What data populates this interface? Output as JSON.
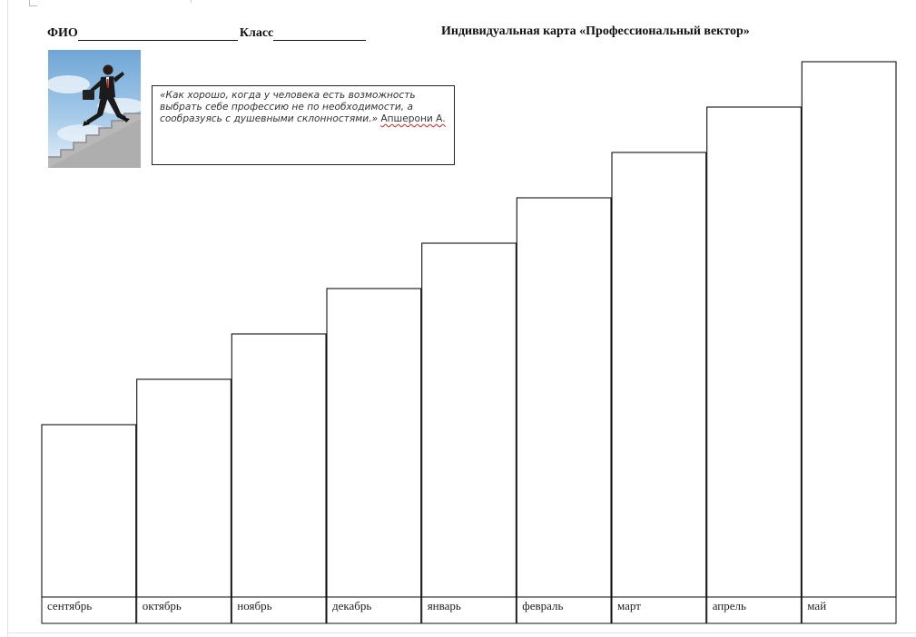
{
  "header": {
    "fio_label": "ФИО",
    "class_label": "Класс",
    "title": "Индивидуальная карта «Профессиональный вектор»"
  },
  "quote": {
    "text": "«Как хорошо, когда у человека есть возможность выбрать себе профессию не по необходимости, а сообразуясь с душевными склонностями.» ",
    "author": "Апшерони А."
  },
  "photo": {
    "icon": "businessman-climbing-stairs-icon",
    "sky_color": "#9cc4e4",
    "stairs_color": "#bdbdbd"
  },
  "chart_data": {
    "type": "bar",
    "categories": [
      "сентябрь",
      "октябрь",
      "ноябрь",
      "декабрь",
      "январь",
      "февраль",
      "март",
      "апрель",
      "май"
    ],
    "values": [
      1,
      2,
      3,
      4,
      5,
      6,
      7,
      8,
      9
    ],
    "bar_fill": "#ffffff",
    "bar_stroke": "#111111"
  }
}
